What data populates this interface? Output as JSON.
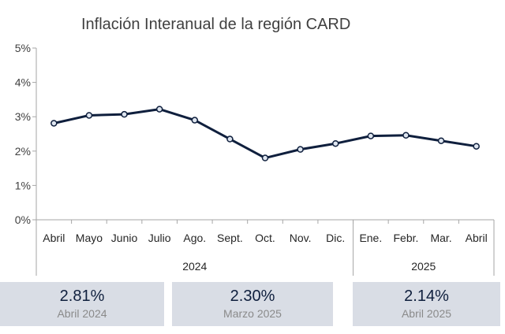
{
  "colors": {
    "line": "#0f1f3d",
    "marker_fill": "#dfe6f0",
    "summary_bg": "#d9dde5"
  },
  "chart_data": {
    "type": "line",
    "title": "Inflación Interanual de la región CARD",
    "categories": [
      "Abril",
      "Mayo",
      "Junio",
      "Julio",
      "Ago.",
      "Sept.",
      "Oct.",
      "Nov.",
      "Dic.",
      "Ene.",
      "Febr.",
      "Mar.",
      "Abril"
    ],
    "groups": [
      {
        "label": "2024",
        "start": 0,
        "end": 8
      },
      {
        "label": "2025",
        "start": 9,
        "end": 12
      }
    ],
    "series": [
      {
        "values": [
          2.81,
          3.04,
          3.07,
          3.22,
          2.9,
          2.35,
          1.8,
          2.05,
          2.22,
          2.44,
          2.46,
          2.3,
          2.14
        ]
      }
    ],
    "y_ticks": [
      "0%",
      "1%",
      "2%",
      "3%",
      "4%",
      "5%"
    ],
    "ylim": [
      0,
      5
    ],
    "grid": false
  },
  "summary": [
    {
      "value": "2.81%",
      "label": "Abril 2024"
    },
    {
      "value": "2.30%",
      "label": "Marzo 2025"
    },
    {
      "value": "2.14%",
      "label": "Abril 2025"
    }
  ]
}
